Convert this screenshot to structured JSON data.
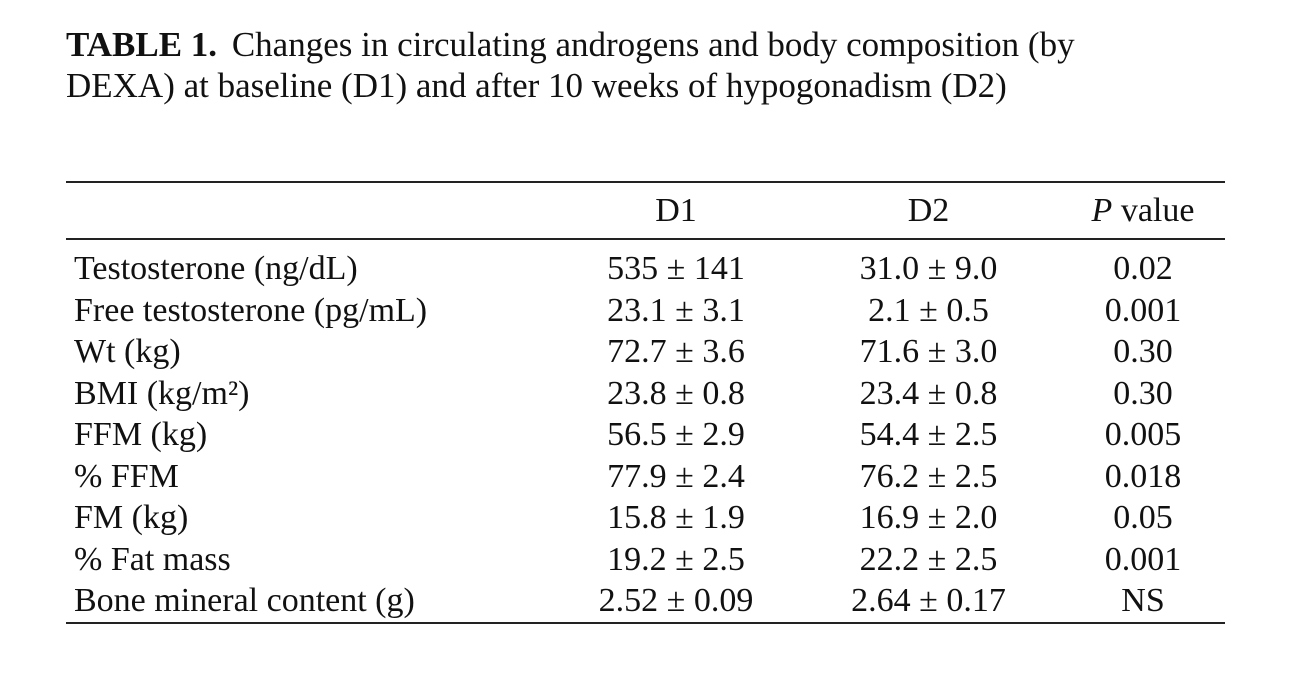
{
  "caption": {
    "label": "TABLE 1.",
    "text": "Changes in circulating androgens and body composition (by DEXA) at baseline (D1) and after 10 weeks of hypogonadism (D2)"
  },
  "table": {
    "header": [
      "",
      "D1",
      "D2",
      "P value"
    ],
    "rows": [
      [
        "Testosterone (ng/dL)",
        "535 ± 141",
        "31.0 ± 9.0",
        "0.02"
      ],
      [
        "Free testosterone (pg/mL)",
        "23.1 ± 3.1",
        "2.1 ± 0.5",
        "0.001"
      ],
      [
        "Wt (kg)",
        "72.7 ± 3.6",
        "71.6 ± 3.0",
        "0.30"
      ],
      [
        "BMI (kg/m²)",
        "23.8 ± 0.8",
        "23.4 ± 0.8",
        "0.30"
      ],
      [
        "FFM (kg)",
        "56.5 ± 2.9",
        "54.4 ± 2.5",
        "0.005"
      ],
      [
        "% FFM",
        "77.9 ± 2.4",
        "76.2 ± 2.5",
        "0.018"
      ],
      [
        "FM (kg)",
        "15.8 ± 1.9",
        "16.9 ± 2.0",
        "0.05"
      ],
      [
        "% Fat mass",
        "19.2 ± 2.5",
        "22.2 ± 2.5",
        "0.001"
      ],
      [
        "Bone mineral content (g)",
        "2.52 ± 0.09",
        "2.64 ± 0.17",
        "NS"
      ]
    ]
  }
}
